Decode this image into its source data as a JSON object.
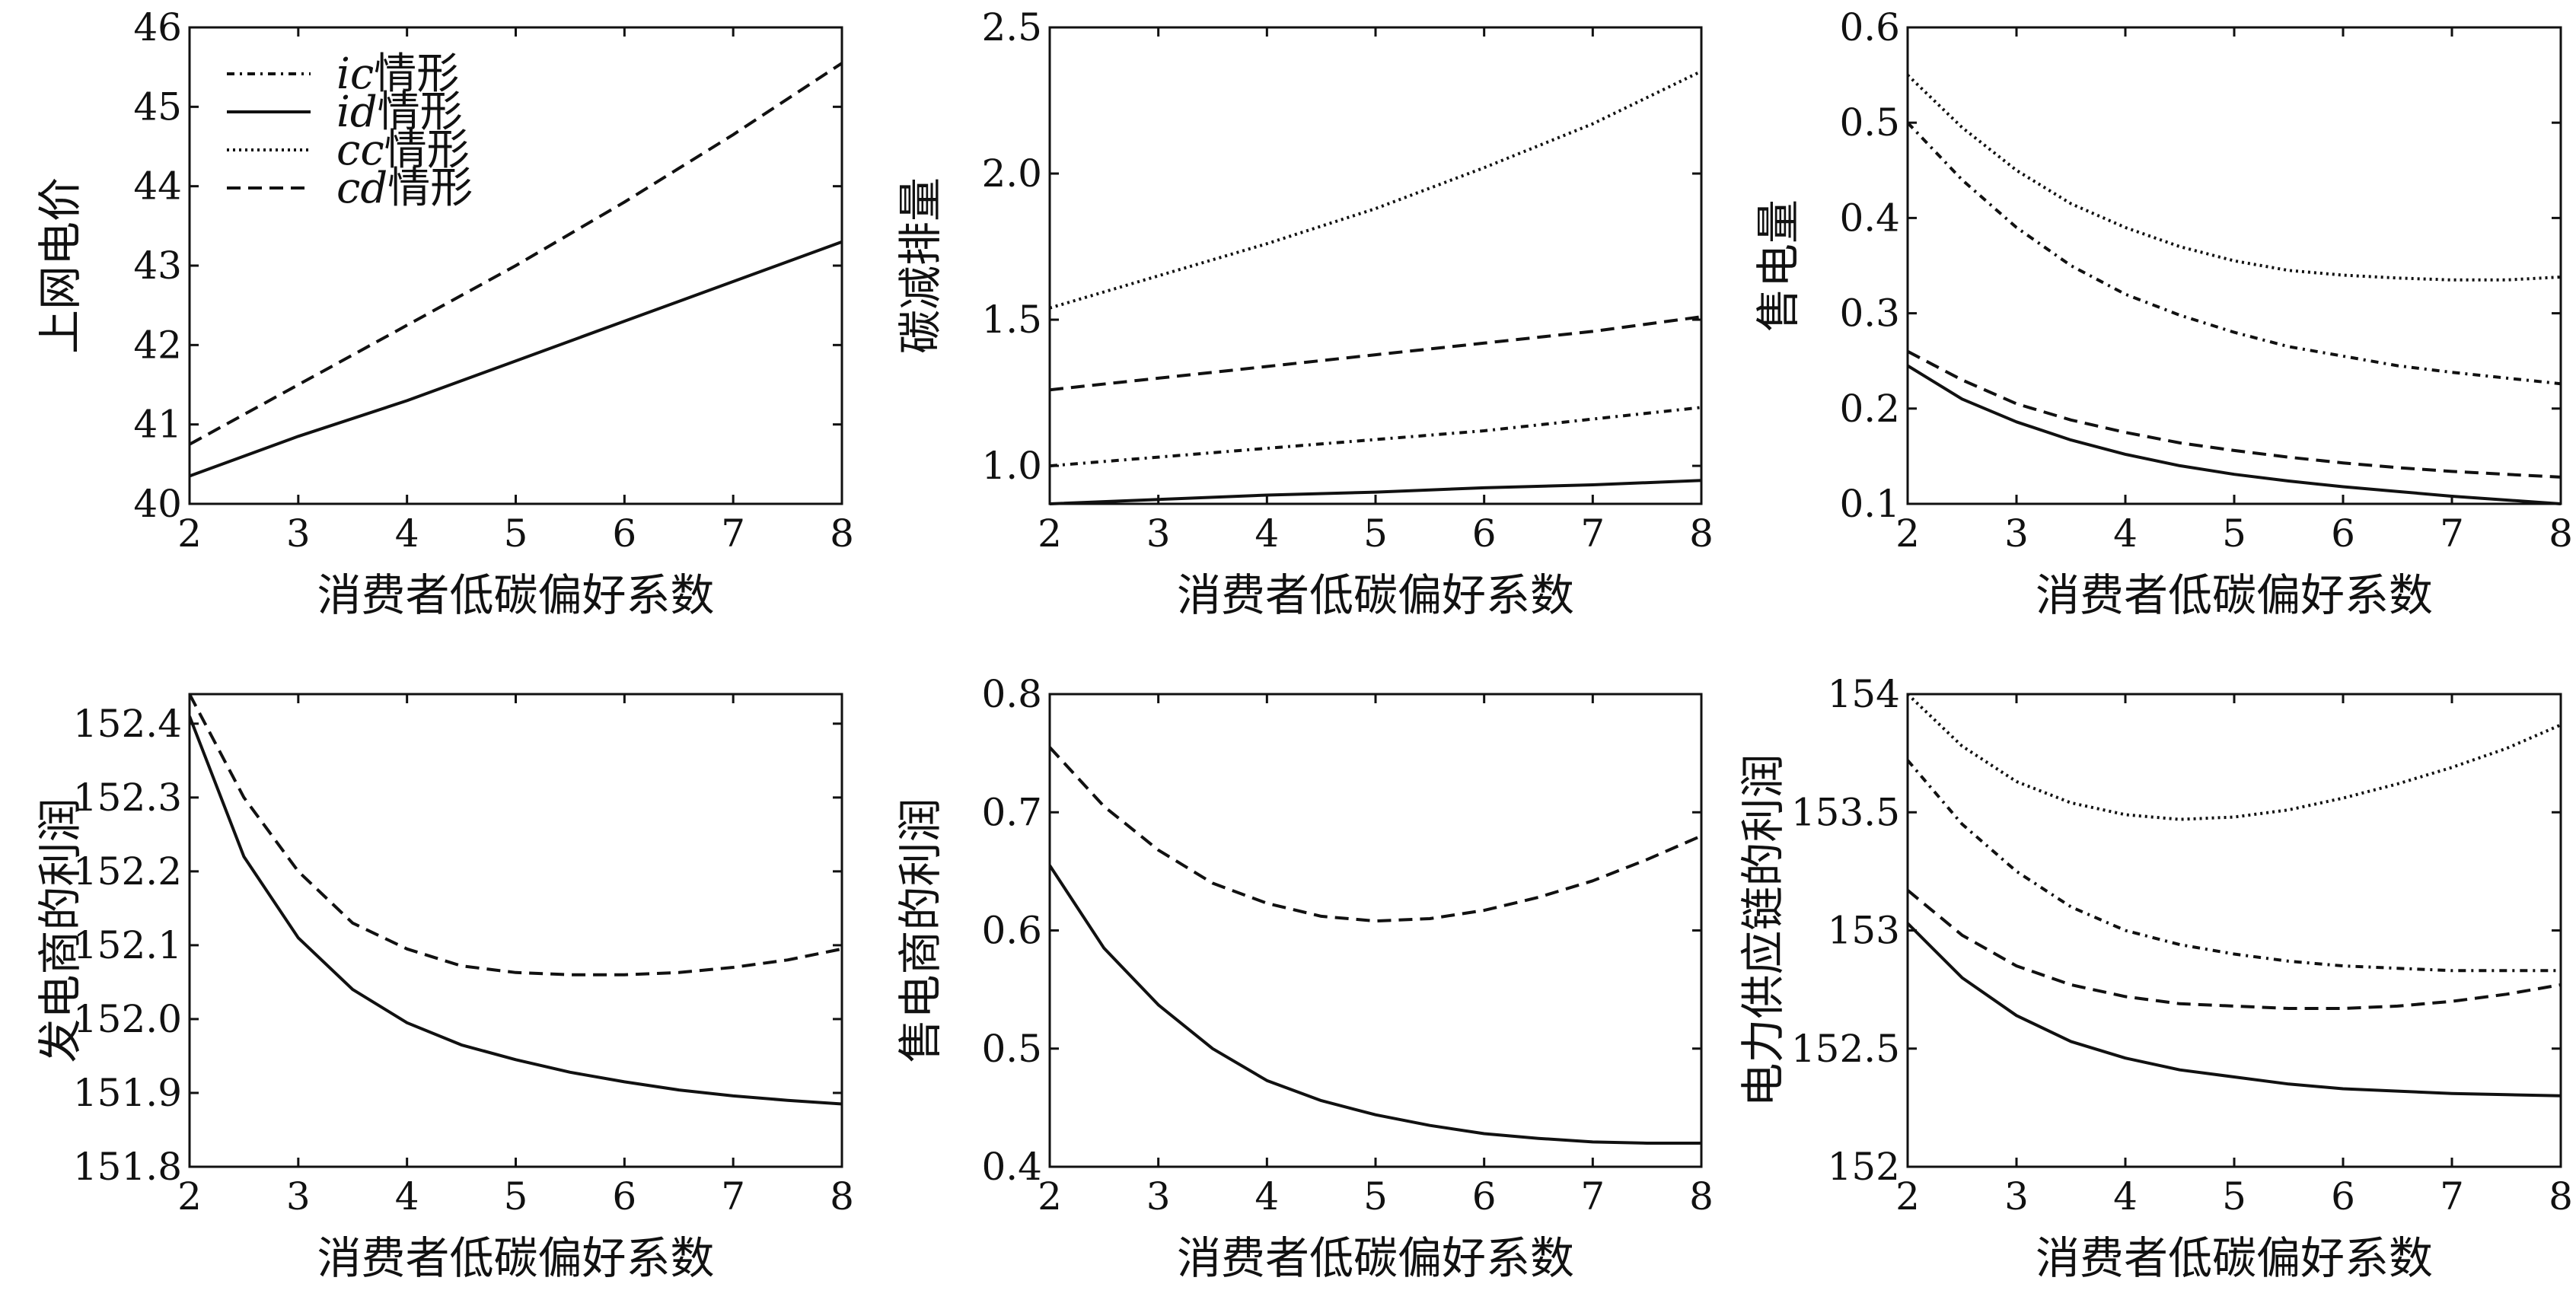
{
  "styles": {
    "ic": "10 7 3 7",
    "id": "none",
    "cc": "3 5",
    "cd": "18 10"
  },
  "legend_names": {
    "ic": "ic",
    "id": "id",
    "cc": "cc",
    "cd": "cd"
  },
  "legend_suffix": "情形",
  "chart_data": [
    {
      "type": "line",
      "xlabel": "消费者低碳偏好系数",
      "ylabel": "上网电价",
      "xlim": [
        2,
        8
      ],
      "ylim": [
        40,
        46
      ],
      "xticks": [
        2,
        3,
        4,
        5,
        6,
        7,
        8
      ],
      "yticks": [
        "40",
        "41",
        "42",
        "43",
        "44",
        "45",
        "46"
      ],
      "legend": "top-left",
      "grid": false,
      "x": [
        2,
        3,
        4,
        5,
        6,
        7,
        8
      ],
      "series": [
        {
          "name": "id",
          "values": [
            40.35,
            40.85,
            41.3,
            41.8,
            42.3,
            42.8,
            43.3
          ]
        },
        {
          "name": "cd",
          "values": [
            40.75,
            41.5,
            42.25,
            43.0,
            43.8,
            44.65,
            45.55
          ]
        }
      ]
    },
    {
      "type": "line",
      "xlabel": "消费者低碳偏好系数",
      "ylabel": "碳减排量",
      "xlim": [
        2,
        8
      ],
      "ylim": [
        0.87,
        2.5
      ],
      "xticks": [
        2,
        3,
        4,
        5,
        6,
        7,
        8
      ],
      "yticks": [
        "1.0",
        "1.5",
        "2.0",
        "2.5"
      ],
      "legend": "none",
      "grid": false,
      "x": [
        2,
        3,
        4,
        5,
        6,
        7,
        8
      ],
      "series": [
        {
          "name": "cc",
          "values": [
            1.54,
            1.65,
            1.76,
            1.88,
            2.02,
            2.17,
            2.35
          ]
        },
        {
          "name": "cd",
          "values": [
            1.26,
            1.3,
            1.34,
            1.38,
            1.42,
            1.46,
            1.51
          ]
        },
        {
          "name": "ic",
          "values": [
            1.0,
            1.03,
            1.06,
            1.09,
            1.12,
            1.16,
            1.2
          ]
        },
        {
          "name": "id",
          "values": [
            0.87,
            0.885,
            0.9,
            0.91,
            0.925,
            0.935,
            0.95
          ]
        }
      ]
    },
    {
      "type": "line",
      "xlabel": "消费者低碳偏好系数",
      "ylabel": "售电量",
      "xlim": [
        2,
        8
      ],
      "ylim": [
        0.1,
        0.6
      ],
      "xticks": [
        2,
        3,
        4,
        5,
        6,
        7,
        8
      ],
      "yticks": [
        "0.1",
        "0.2",
        "0.3",
        "0.4",
        "0.5",
        "0.6"
      ],
      "legend": "none",
      "grid": false,
      "x": [
        2,
        2.5,
        3,
        3.5,
        4,
        4.5,
        5,
        5.5,
        6,
        6.5,
        7,
        7.5,
        8
      ],
      "series": [
        {
          "name": "cc",
          "values": [
            0.55,
            0.495,
            0.45,
            0.415,
            0.39,
            0.37,
            0.355,
            0.345,
            0.34,
            0.337,
            0.335,
            0.335,
            0.338
          ]
        },
        {
          "name": "ic",
          "values": [
            0.5,
            0.44,
            0.39,
            0.35,
            0.32,
            0.298,
            0.28,
            0.265,
            0.255,
            0.245,
            0.238,
            0.232,
            0.226
          ]
        },
        {
          "name": "cd",
          "values": [
            0.26,
            0.23,
            0.205,
            0.188,
            0.175,
            0.164,
            0.156,
            0.149,
            0.143,
            0.138,
            0.134,
            0.131,
            0.128
          ]
        },
        {
          "name": "id",
          "values": [
            0.245,
            0.21,
            0.186,
            0.167,
            0.152,
            0.14,
            0.131,
            0.124,
            0.118,
            0.113,
            0.108,
            0.104,
            0.1
          ]
        }
      ]
    },
    {
      "type": "line",
      "xlabel": "消费者低碳偏好系数",
      "ylabel": "发电商的利润",
      "xlim": [
        2,
        8
      ],
      "ylim": [
        151.8,
        152.44
      ],
      "xticks": [
        2,
        3,
        4,
        5,
        6,
        7,
        8
      ],
      "yticks": [
        "151.8",
        "151.9",
        "152.0",
        "152.1",
        "152.2",
        "152.3",
        "152.4"
      ],
      "legend": "none",
      "grid": false,
      "x": [
        2,
        2.5,
        3,
        3.5,
        4,
        4.5,
        5,
        5.5,
        6,
        6.5,
        7,
        7.5,
        8
      ],
      "series": [
        {
          "name": "cd",
          "values": [
            152.44,
            152.3,
            152.2,
            152.13,
            152.095,
            152.072,
            152.063,
            152.06,
            152.06,
            152.063,
            152.07,
            152.08,
            152.095
          ]
        },
        {
          "name": "id",
          "values": [
            152.41,
            152.22,
            152.11,
            152.04,
            151.995,
            151.965,
            151.945,
            151.928,
            151.915,
            151.904,
            151.896,
            151.89,
            151.885
          ]
        }
      ]
    },
    {
      "type": "line",
      "xlabel": "消费者低碳偏好系数",
      "ylabel": "售电商的利润",
      "xlim": [
        2,
        8
      ],
      "ylim": [
        0.4,
        0.8
      ],
      "xticks": [
        2,
        3,
        4,
        5,
        6,
        7,
        8
      ],
      "yticks": [
        "0.4",
        "0.5",
        "0.6",
        "0.7",
        "0.8"
      ],
      "legend": "none",
      "grid": false,
      "x": [
        2,
        2.5,
        3,
        3.5,
        4,
        4.5,
        5,
        5.5,
        6,
        6.5,
        7,
        7.5,
        8
      ],
      "series": [
        {
          "name": "cd",
          "values": [
            0.755,
            0.705,
            0.668,
            0.64,
            0.623,
            0.612,
            0.608,
            0.61,
            0.617,
            0.628,
            0.642,
            0.66,
            0.68
          ]
        },
        {
          "name": "id",
          "values": [
            0.655,
            0.585,
            0.537,
            0.5,
            0.473,
            0.456,
            0.444,
            0.435,
            0.428,
            0.424,
            0.421,
            0.42,
            0.42
          ]
        }
      ]
    },
    {
      "type": "line",
      "xlabel": "消费者低碳偏好系数",
      "ylabel": "电力供应链的利润",
      "xlim": [
        2,
        8
      ],
      "ylim": [
        152,
        154
      ],
      "xticks": [
        2,
        3,
        4,
        5,
        6,
        7,
        8
      ],
      "yticks": [
        "152",
        "152.5",
        "153",
        "153.5",
        "154"
      ],
      "legend": "none",
      "grid": false,
      "x": [
        2,
        2.5,
        3,
        3.5,
        4,
        4.5,
        5,
        5.5,
        6,
        6.5,
        7,
        7.5,
        8
      ],
      "series": [
        {
          "name": "cc",
          "values": [
            154.0,
            153.78,
            153.63,
            153.54,
            153.49,
            153.47,
            153.48,
            153.51,
            153.56,
            153.62,
            153.69,
            153.77,
            153.87
          ]
        },
        {
          "name": "ic",
          "values": [
            153.72,
            153.45,
            153.25,
            153.1,
            153.0,
            152.94,
            152.9,
            152.87,
            152.85,
            152.84,
            152.83,
            152.83,
            152.83
          ]
        },
        {
          "name": "cd",
          "values": [
            153.17,
            152.98,
            152.85,
            152.77,
            152.72,
            152.69,
            152.68,
            152.67,
            152.67,
            152.68,
            152.7,
            152.73,
            152.77
          ]
        },
        {
          "name": "id",
          "values": [
            153.03,
            152.8,
            152.64,
            152.53,
            152.46,
            152.41,
            152.38,
            152.35,
            152.33,
            152.32,
            152.31,
            152.305,
            152.3
          ]
        }
      ]
    }
  ]
}
